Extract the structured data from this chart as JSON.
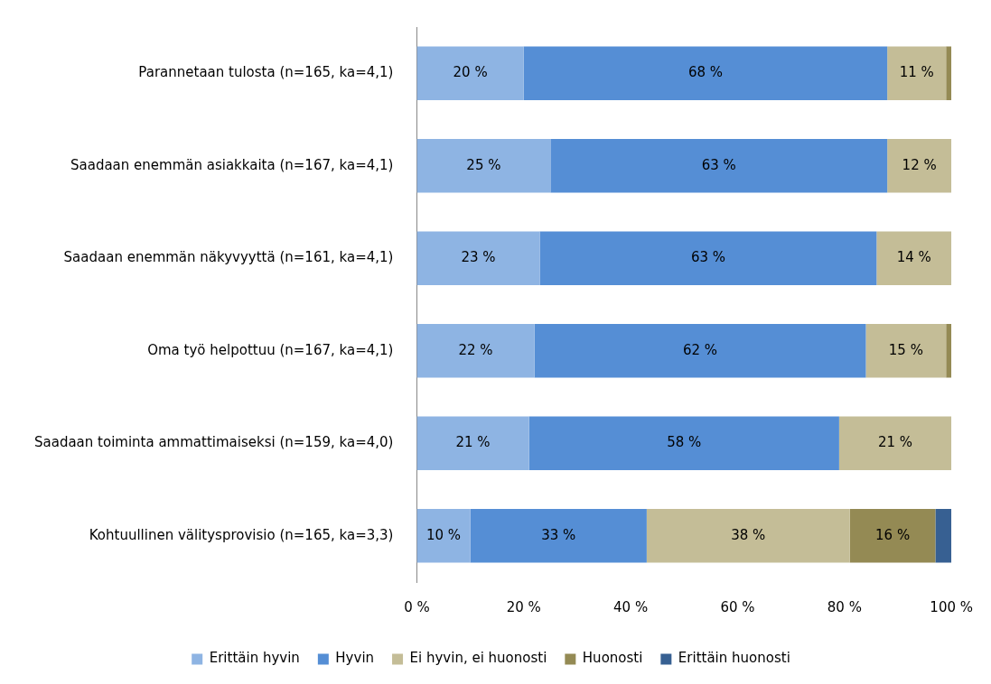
{
  "chart_data": {
    "type": "bar",
    "orientation": "horizontal",
    "stacked": true,
    "categories": [
      "Parannetaan tulosta (n=165, ka=4,1)",
      "Saadaan enemmän asiakkaita (n=167, ka=4,1)",
      "Saadaan enemmän näkyvyyttä (n=161, ka=4,1)",
      "Oma työ helpottuu (n=167, ka=4,1)",
      "Saadaan toiminta ammattimaiseksi (n=159, ka=4,0)",
      "Kohtuullinen välitysprovisio (n=165, ka=3,3)"
    ],
    "series": [
      {
        "name": "Erittäin hyvin",
        "color": "#8eb4e3",
        "values": [
          20,
          25,
          23,
          22,
          21,
          10
        ],
        "value_labels": [
          "20 %",
          "25 %",
          "23 %",
          "22 %",
          "21 %",
          "10 %"
        ]
      },
      {
        "name": "Hyvin",
        "color": "#558ed5",
        "values": [
          68,
          63,
          63,
          62,
          58,
          33
        ],
        "value_labels": [
          "68 %",
          "63 %",
          "63 %",
          "62 %",
          "58 %",
          "33 %"
        ]
      },
      {
        "name": "Ei hyvin, ei huonosti",
        "color": "#c4bd97",
        "values": [
          11,
          12,
          14,
          15,
          21,
          38
        ],
        "value_labels": [
          "11 %",
          "12 %",
          "14 %",
          "15 %",
          "21 %",
          "38 %"
        ]
      },
      {
        "name": "Huonosti",
        "color": "#948a54",
        "values": [
          1,
          null,
          null,
          1,
          null,
          16
        ],
        "value_labels": [
          null,
          null,
          null,
          null,
          null,
          "16 %"
        ]
      },
      {
        "name": "Erittäin huonosti",
        "color": "#376092",
        "values": [
          null,
          null,
          null,
          null,
          null,
          3
        ],
        "value_labels": [
          null,
          null,
          null,
          null,
          null,
          null
        ]
      }
    ],
    "xlim": [
      0,
      100
    ],
    "xticks": [
      {
        "value": 0,
        "label": "0 %"
      },
      {
        "value": 20,
        "label": "20 %"
      },
      {
        "value": 40,
        "label": "40 %"
      },
      {
        "value": 60,
        "label": "60 %"
      },
      {
        "value": 80,
        "label": "80 %"
      },
      {
        "value": 100,
        "label": "100 %"
      }
    ],
    "grid": false,
    "legend": "bottom"
  }
}
